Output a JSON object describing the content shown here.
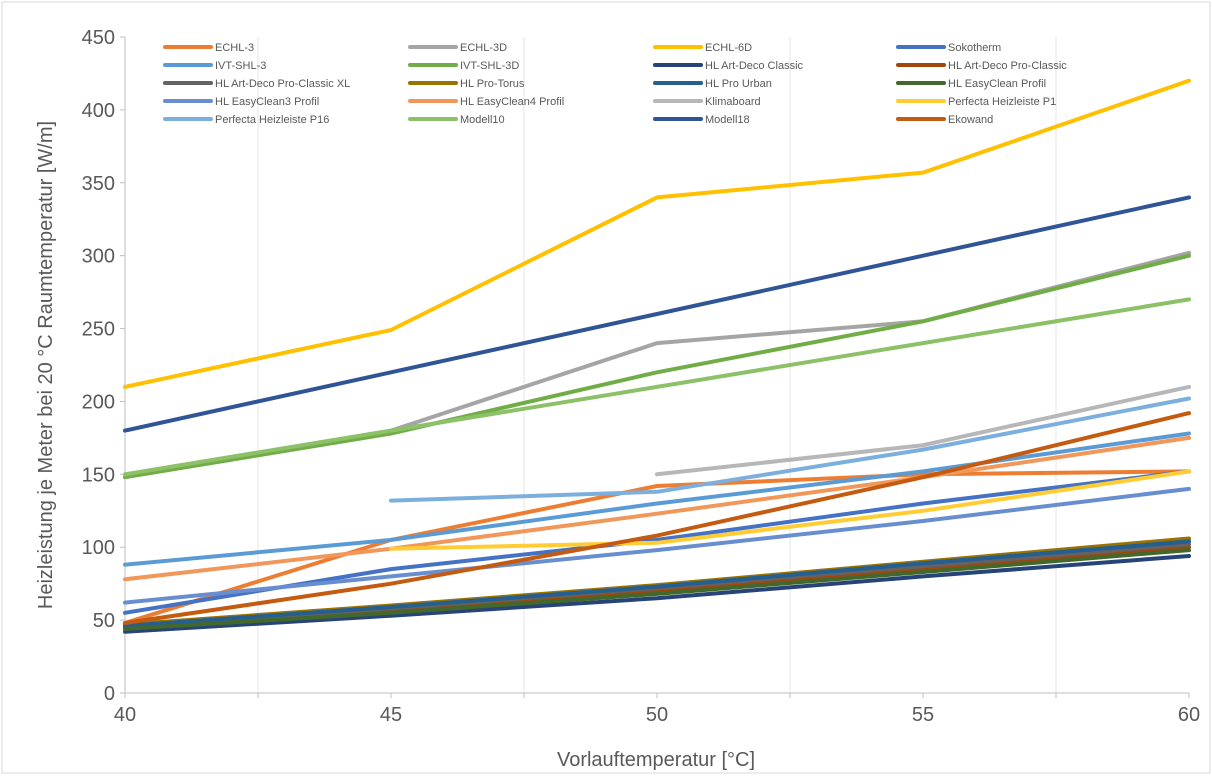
{
  "chart_data": {
    "type": "line",
    "title": "",
    "xlabel": "Vorlauftemperatur [°C]",
    "ylabel": "Heizleistung je Meter bei 20 °C Raumtemperatur [W/m]",
    "x": [
      40,
      45,
      50,
      55,
      60
    ],
    "xlim": [
      40,
      60
    ],
    "ylim": [
      0,
      450
    ],
    "x_ticks": [
      40,
      45,
      50,
      55,
      60
    ],
    "y_ticks": [
      0,
      50,
      100,
      150,
      200,
      250,
      300,
      350,
      400,
      450
    ],
    "grid": "vertical minor gridlines every 2.5",
    "legend_position": "top (inside plot area, 4 columns)",
    "series": [
      {
        "name": "ECHL-3",
        "color": "#ED7D31",
        "values": [
          48,
          105,
          142,
          150,
          152
        ]
      },
      {
        "name": "ECHL-3D",
        "color": "#A5A5A5",
        "values": [
          null,
          180,
          240,
          255,
          302
        ]
      },
      {
        "name": "ECHL-6D",
        "color": "#FFC000",
        "values": [
          210,
          249,
          340,
          357,
          420
        ]
      },
      {
        "name": "Sokotherm",
        "color": "#4472C4",
        "values": [
          55,
          85,
          105,
          130,
          152
        ]
      },
      {
        "name": "IVT-SHL-3",
        "color": "#5B9BD5",
        "values": [
          88,
          105,
          130,
          152,
          178
        ]
      },
      {
        "name": "IVT-SHL-3D",
        "color": "#70AD47",
        "values": [
          148,
          178,
          220,
          255,
          300
        ]
      },
      {
        "name": "HL Art-Deco Classic",
        "color": "#264478",
        "values": [
          42,
          53,
          65,
          80,
          94
        ]
      },
      {
        "name": "HL Art-Deco Pro-Classic",
        "color": "#9E480E",
        "values": [
          45,
          57,
          70,
          85,
          100
        ]
      },
      {
        "name": "HL Art-Deco Pro-Classic XL",
        "color": "#636363",
        "values": [
          46,
          58,
          72,
          87,
          102
        ]
      },
      {
        "name": "HL Pro-Torus",
        "color": "#997300",
        "values": [
          47,
          60,
          74,
          90,
          106
        ]
      },
      {
        "name": "HL Pro Urban",
        "color": "#255E91",
        "values": [
          46,
          59,
          73,
          89,
          104
        ]
      },
      {
        "name": "HL EasyClean Profil",
        "color": "#43682B",
        "values": [
          44,
          55,
          68,
          83,
          98
        ]
      },
      {
        "name": "HL EasyClean3 Profil",
        "color": "#698ED0",
        "values": [
          62,
          80,
          98,
          118,
          140
        ]
      },
      {
        "name": "HL EasyClean4 Profil",
        "color": "#F1975A",
        "values": [
          78,
          99,
          123,
          148,
          175
        ]
      },
      {
        "name": "Klimaboard",
        "color": "#B7B7B7",
        "values": [
          null,
          null,
          150,
          170,
          210
        ]
      },
      {
        "name": "Perfecta Heizleiste P1",
        "color": "#FFCD33",
        "values": [
          null,
          99,
          103,
          125,
          152
        ]
      },
      {
        "name": "Perfecta Heizleiste P16",
        "color": "#7CAFDD",
        "values": [
          null,
          132,
          138,
          167,
          202
        ]
      },
      {
        "name": "Modell10",
        "color": "#8CC168",
        "values": [
          150,
          180,
          210,
          240,
          270
        ]
      },
      {
        "name": "Modell18",
        "color": "#2F5597",
        "values": [
          180,
          220,
          260,
          300,
          340
        ]
      },
      {
        "name": "Ekowand",
        "color": "#C55A11",
        "values": [
          48,
          75,
          108,
          148,
          192
        ]
      }
    ]
  }
}
